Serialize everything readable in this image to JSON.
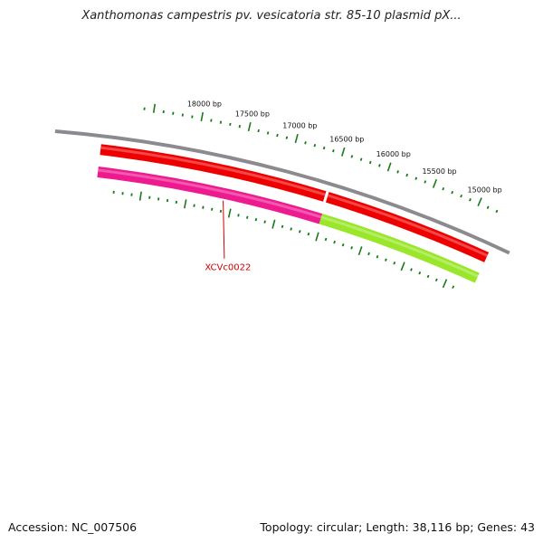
{
  "title": "Xanthomonas campestris pv. vesicatoria str. 85-10 plasmid pX...",
  "footer": {
    "accession": "Accession: NC_007506",
    "summary": "Topology: circular; Length: 38,116 bp; Genes: 43"
  },
  "colors": {
    "backbone": "#8c8a8e",
    "forward_gene": "#ee0000",
    "reverse_gene_a": "#ee1a8f",
    "reverse_gene_b": "#99e62a",
    "tick": "#1a7a1a",
    "gene_label": "#cc0000"
  },
  "ruler": {
    "labels": [
      "15000 bp",
      "15500 bp",
      "16000 bp",
      "16500 bp",
      "17000 bp",
      "17500 bp",
      "18000 bp"
    ]
  },
  "tracks": {
    "forward": [
      {
        "id": "forward-gene-left",
        "start_bp": 16550,
        "end_bp": 19000
      },
      {
        "id": "forward-gene-right",
        "start_bp": 14700,
        "end_bp": 16520
      }
    ],
    "reverse": [
      {
        "id": "reverse-gene-xcvc0022",
        "start_bp": 16520,
        "end_bp": 19000,
        "color": "reverse_gene_a"
      },
      {
        "id": "reverse-gene-green",
        "start_bp": 14700,
        "end_bp": 16520,
        "color": "reverse_gene_b"
      }
    ]
  },
  "gene_label": {
    "text": "XCVc0022",
    "bp": 17600
  }
}
